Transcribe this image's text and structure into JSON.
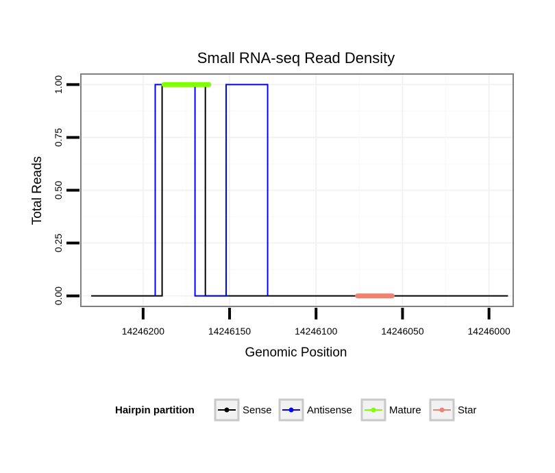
{
  "chart_data": {
    "type": "line",
    "title": "Small RNA-seq Read Density",
    "xlabel": "Genomic Position",
    "ylabel": "Total Reads",
    "x_reversed": true,
    "xlim": [
      14246236,
      14245986
    ],
    "ylim": [
      -0.05,
      1.05
    ],
    "x_ticks": [
      14246200,
      14246150,
      14246100,
      14246050,
      14246000
    ],
    "x_tick_labels": [
      "14246200",
      "14246150",
      "14246100",
      "14246050",
      "14246000"
    ],
    "y_ticks": [
      0,
      0.25,
      0.5,
      0.75,
      1
    ],
    "y_tick_labels": [
      "0.00",
      "0.25",
      "0.50",
      "0.75",
      "1.00"
    ],
    "grid": true,
    "series": [
      {
        "name": "Sense",
        "color": "#000000",
        "x": [
          14246230,
          14246189,
          14246189,
          14246164,
          14246164,
          14246158,
          14246158,
          14245989
        ],
        "y": [
          0,
          0,
          1,
          1,
          0,
          0,
          0,
          0
        ]
      },
      {
        "name": "Antisense",
        "color": "#0000ff",
        "x": [
          14246193,
          14246193,
          14246170,
          14246170,
          14246152,
          14246152,
          14246128,
          14246128
        ],
        "y": [
          0,
          1,
          1,
          0,
          0,
          1,
          1,
          0
        ]
      },
      {
        "name": "Mature",
        "color": "#7fff00",
        "x": [
          14246188,
          14246162
        ],
        "y": [
          1,
          1
        ]
      },
      {
        "name": "Star",
        "color": "#f08070",
        "x": [
          14246076,
          14246056
        ],
        "y": [
          0,
          0
        ]
      }
    ],
    "legend": {
      "title": "Hairpin partition",
      "position": "bottom",
      "entries": [
        {
          "label": "Sense",
          "color": "#000000"
        },
        {
          "label": "Antisense",
          "color": "#0000ff"
        },
        {
          "label": "Mature",
          "color": "#7fff00"
        },
        {
          "label": "Star",
          "color": "#f08070"
        }
      ]
    }
  }
}
